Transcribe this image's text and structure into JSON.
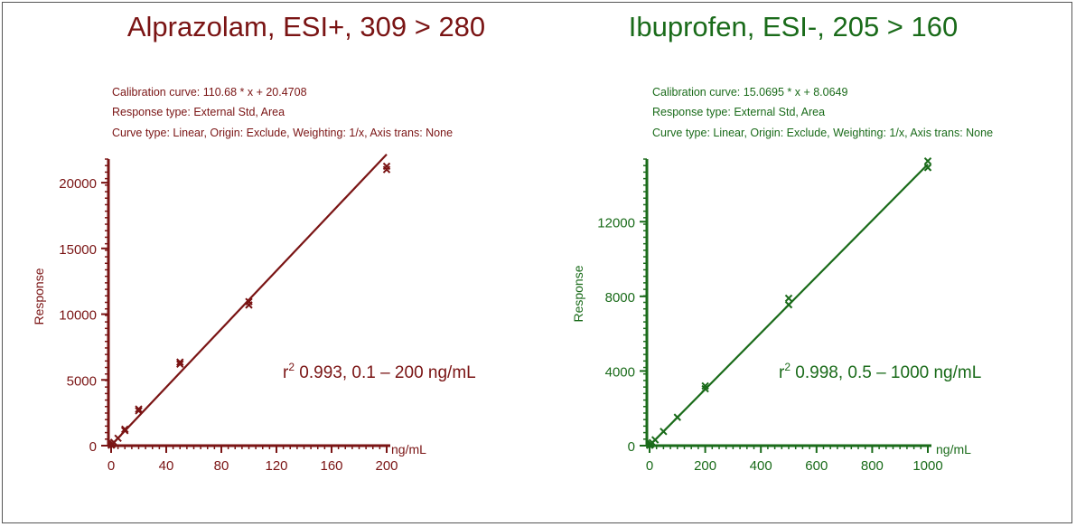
{
  "chart_data": [
    {
      "type": "scatter",
      "color": "#7a1414",
      "title": "Alprazolam, ESI+, 309 > 280",
      "info_lines": [
        "Calibration curve: 110.68 * x + 20.4708",
        "Response type: External Std, Area",
        "Curve type: Linear, Origin: Exclude, Weighting: 1/x, Axis trans: None"
      ],
      "xlabel": "ng/mL",
      "ylabel": "Response",
      "xlim": [
        0,
        200
      ],
      "ylim": [
        0,
        22000
      ],
      "xticks": [
        0,
        40,
        80,
        120,
        160,
        200
      ],
      "yticks": [
        0,
        5000,
        10000,
        15000,
        20000
      ],
      "fit": {
        "slope": 110.68,
        "intercept": 20.4708,
        "x_range": [
          0,
          200
        ]
      },
      "points": [
        {
          "x": 0.1,
          "y": 40
        },
        {
          "x": 0.2,
          "y": 50
        },
        {
          "x": 0.5,
          "y": 80
        },
        {
          "x": 1,
          "y": 150
        },
        {
          "x": 2,
          "y": 250
        },
        {
          "x": 5,
          "y": 560
        },
        {
          "x": 10,
          "y": 1150
        },
        {
          "x": 10,
          "y": 1250
        },
        {
          "x": 20,
          "y": 2650
        },
        {
          "x": 20,
          "y": 2780
        },
        {
          "x": 50,
          "y": 6200
        },
        {
          "x": 50,
          "y": 6350
        },
        {
          "x": 100,
          "y": 10700
        },
        {
          "x": 100,
          "y": 10950
        },
        {
          "x": 200,
          "y": 21000
        },
        {
          "x": 200,
          "y": 21250
        }
      ],
      "annotation": {
        "prefix": "r",
        "sup": "2",
        "text": " 0.993, 0.1 – 200 ng/mL"
      }
    },
    {
      "type": "scatter",
      "color": "#1a6b1a",
      "title": "Ibuprofen, ESI-, 205 > 160",
      "info_lines": [
        "Calibration curve: 15.0695 * x + 8.0649",
        "Response type: External Std, Area",
        "Curve type: Linear, Origin: Exclude, Weighting: 1/x, Axis trans: None"
      ],
      "xlabel": "ng/mL",
      "ylabel": "Response",
      "xlim": [
        0,
        1000
      ],
      "ylim": [
        0,
        15500
      ],
      "xticks": [
        0,
        200,
        400,
        600,
        800,
        1000
      ],
      "yticks": [
        0,
        4000,
        8000,
        12000
      ],
      "fit": {
        "slope": 15.0695,
        "intercept": 8.0649,
        "x_range": [
          0,
          1000
        ]
      },
      "points": [
        {
          "x": 0.5,
          "y": 20
        },
        {
          "x": 1,
          "y": 30
        },
        {
          "x": 2,
          "y": 40
        },
        {
          "x": 5,
          "y": 90
        },
        {
          "x": 10,
          "y": 160
        },
        {
          "x": 20,
          "y": 310
        },
        {
          "x": 50,
          "y": 760
        },
        {
          "x": 100,
          "y": 1520
        },
        {
          "x": 200,
          "y": 3050
        },
        {
          "x": 200,
          "y": 3200
        },
        {
          "x": 500,
          "y": 7550
        },
        {
          "x": 500,
          "y": 7900
        },
        {
          "x": 1000,
          "y": 14900
        },
        {
          "x": 1000,
          "y": 15250
        }
      ],
      "annotation": {
        "prefix": "r",
        "sup": "2",
        "text": " 0.998, 0.5 – 1000 ng/mL"
      }
    }
  ]
}
